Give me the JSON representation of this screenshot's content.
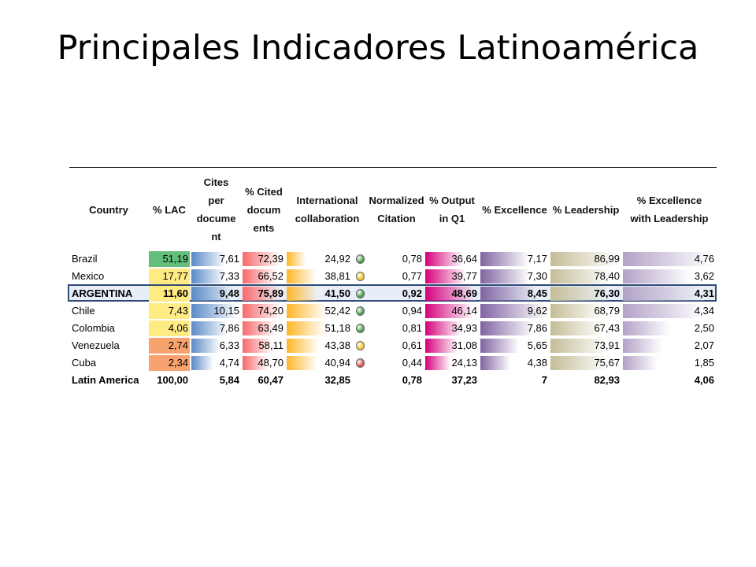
{
  "title": "Principales Indicadores Latinoamérica",
  "headers": [
    "Country",
    "% LAC",
    "Cites\nper\ndocume\nnt",
    "% Cited\ndocum\nents",
    "International\ncollaboration",
    "Normalized\nCitation",
    "% Output\nin Q1",
    "% Excellence",
    "% Leadership",
    "% Excellence\nwith Leadership"
  ],
  "rows": [
    {
      "country": "Brazil",
      "lac": "51,19",
      "cites": "7,61",
      "cited": "72,39",
      "intl": "24,92",
      "norm": "0,78",
      "q1": "36,64",
      "exc": "7,17",
      "lead": "86,99",
      "excl": "4,76",
      "dot": "green",
      "bold": false
    },
    {
      "country": "Mexico",
      "lac": "17,77",
      "cites": "7,33",
      "cited": "66,52",
      "intl": "38,81",
      "norm": "0,77",
      "q1": "39,77",
      "exc": "7,30",
      "lead": "78,40",
      "excl": "3,62",
      "dot": "yellow",
      "bold": false
    },
    {
      "country": "ARGENTINA",
      "lac": "11,60",
      "cites": "9,48",
      "cited": "75,89",
      "intl": "41,50",
      "norm": "0,92",
      "q1": "48,69",
      "exc": "8,45",
      "lead": "76,30",
      "excl": "4,31",
      "dot": "green",
      "bold": true
    },
    {
      "country": "Chile",
      "lac": "7,43",
      "cites": "10,15",
      "cited": "74,20",
      "intl": "52,42",
      "norm": "0,94",
      "q1": "46,14",
      "exc": "9,62",
      "lead": "68,79",
      "excl": "4,34",
      "dot": "green",
      "bold": false
    },
    {
      "country": "Colombia",
      "lac": "4,06",
      "cites": "7,86",
      "cited": "63,49",
      "intl": "51,18",
      "norm": "0,81",
      "q1": "34,93",
      "exc": "7,86",
      "lead": "67,43",
      "excl": "2,50",
      "dot": "green",
      "bold": false
    },
    {
      "country": "Venezuela",
      "lac": "2,74",
      "cites": "6,33",
      "cited": "58,11",
      "intl": "43,38",
      "norm": "0,61",
      "q1": "31,08",
      "exc": "5,65",
      "lead": "73,91",
      "excl": "2,07",
      "dot": "yellow",
      "bold": false
    },
    {
      "country": "Cuba",
      "lac": "2,34",
      "cites": "4,74",
      "cited": "48,70",
      "intl": "40,94",
      "norm": "0,44",
      "q1": "24,13",
      "exc": "4,38",
      "lead": "75,67",
      "excl": "1,85",
      "dot": "red",
      "bold": false
    }
  ],
  "total": {
    "country": "Latin America",
    "lac": "100,00",
    "cites": "5,84",
    "cited": "60,47",
    "intl": "32,85",
    "norm": "0,78",
    "q1": "37,23",
    "exc": "7",
    "lead": "82,93",
    "excl": "4,06"
  },
  "colors": {
    "lac_high": "#63be7b",
    "lac_mid": "#ffeb84",
    "lac_low": "#f8a36f",
    "cites": "#5a8ac6",
    "cited": "#f8696b",
    "intl": "#ffb628",
    "q1": "#d6007b",
    "exc": "#8064a2",
    "lead": "#c4bd97",
    "excl": "#b3a2c7",
    "dot_green": "#4a9e4a",
    "dot_yellow": "#f2c32a",
    "dot_red": "#d9534f",
    "highlight_border": "#2f4a74"
  }
}
